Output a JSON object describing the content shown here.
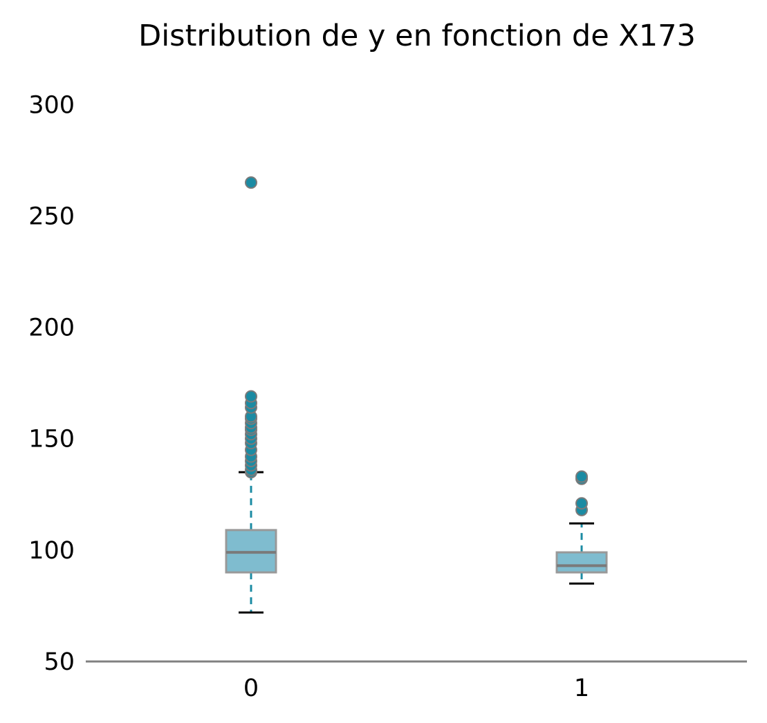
{
  "chart_data": {
    "type": "box",
    "title": "Distribution de y en fonction de X173",
    "xlabel": "",
    "ylabel": "",
    "categories": [
      "0",
      "1"
    ],
    "ylim": [
      50,
      315
    ],
    "yticks": [
      "50",
      "100",
      "150",
      "200",
      "250",
      "300"
    ],
    "grid": false,
    "boxes": [
      {
        "category": "0",
        "whisker_low": 72,
        "q1": 90,
        "median": 99,
        "q3": 109,
        "whisker_high": 135,
        "outliers": [
          135,
          136,
          138,
          140,
          142,
          145,
          148,
          150,
          152,
          154,
          155,
          157,
          159,
          160,
          164,
          166,
          169,
          265
        ]
      },
      {
        "category": "1",
        "whisker_low": 85,
        "q1": 90,
        "median": 93,
        "q3": 99,
        "whisker_high": 112,
        "outliers": [
          118,
          121,
          132,
          133
        ]
      }
    ],
    "colors": {
      "box_fill": "#7fbccf",
      "box_edge": "#999999",
      "median": "#7a7a7a",
      "whisker": "#1b8ba3",
      "cap": "#000000",
      "outlier_fill": "#1b8ba3",
      "outlier_edge": "#7a7a7a",
      "axis": "#808080"
    }
  }
}
